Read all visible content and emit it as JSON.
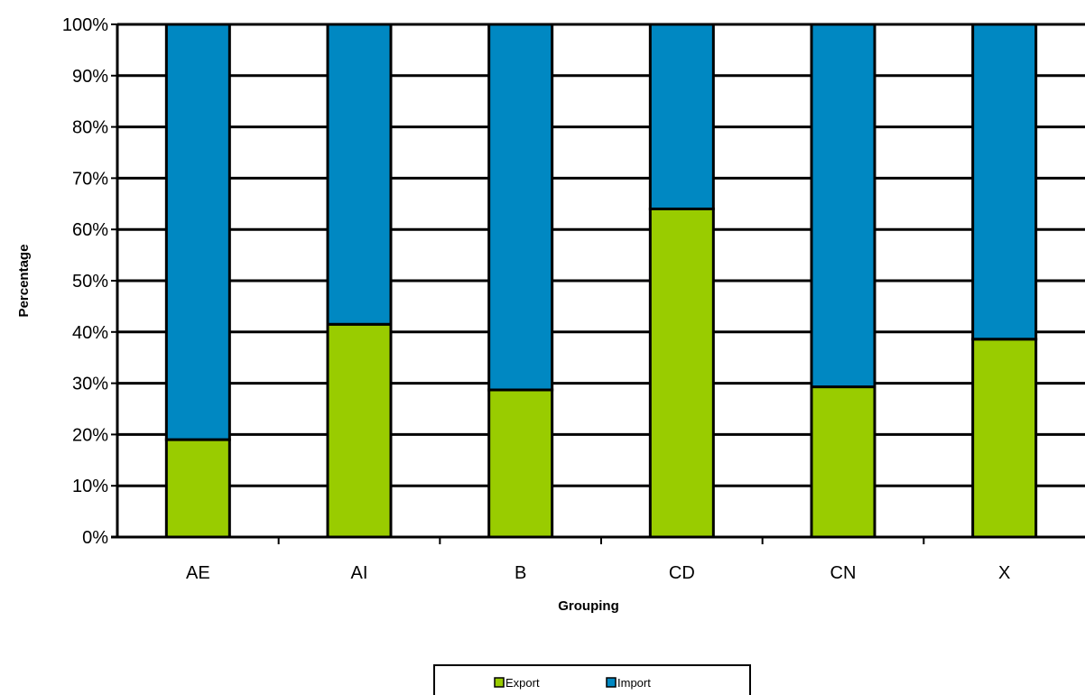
{
  "chart_data": {
    "type": "bar",
    "stacked": "percent",
    "title": "",
    "xlabel": "Grouping",
    "ylabel": "Percentage",
    "categories": [
      "AE",
      "AI",
      "B",
      "CD",
      "CN",
      "X"
    ],
    "series": [
      {
        "name": "Export",
        "color": "#99cc00",
        "values": [
          19,
          41.5,
          28.7,
          64,
          29.3,
          38.6
        ]
      },
      {
        "name": "Import",
        "color": "#0088c2",
        "values": [
          81,
          58.5,
          71.3,
          36,
          70.7,
          61.4
        ]
      }
    ],
    "ylim": [
      0,
      100
    ],
    "yticks": [
      "0%",
      "10%",
      "20%",
      "30%",
      "40%",
      "50%",
      "60%",
      "70%",
      "80%",
      "90%",
      "100%"
    ],
    "grid": true,
    "legend_position": "bottom"
  }
}
